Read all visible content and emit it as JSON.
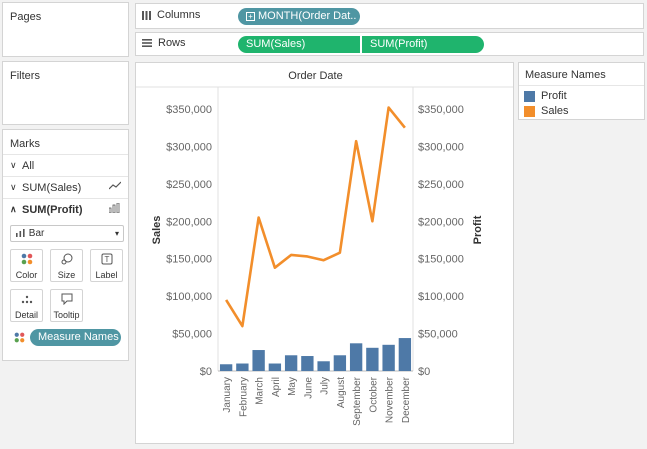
{
  "pages": {
    "title": "Pages"
  },
  "filters": {
    "title": "Filters"
  },
  "columns_shelf": {
    "label": "Columns",
    "pills": [
      "MONTH(Order Dat.."
    ]
  },
  "rows_shelf": {
    "label": "Rows",
    "pills": [
      "SUM(Sales)",
      "SUM(Profit)"
    ]
  },
  "marks": {
    "title": "Marks",
    "rows": [
      {
        "label": "All",
        "icon": "chevron-down-icon"
      },
      {
        "label": "SUM(Sales)",
        "icon": "line-mark-icon"
      },
      {
        "label": "SUM(Profit)",
        "icon": "bar-mark-icon"
      }
    ],
    "mark_type": "Bar",
    "buttons": [
      "Color",
      "Size",
      "Label",
      "Detail",
      "Tooltip"
    ],
    "color_pill": "Measure Names"
  },
  "legend": {
    "title": "Measure Names",
    "items": [
      {
        "label": "Profit",
        "color": "#4e79a7"
      },
      {
        "label": "Sales",
        "color": "#f28e2b"
      }
    ]
  },
  "chart_data": {
    "type": "bar",
    "title": "Order Date",
    "ylabel": "Sales",
    "y2label": "Profit",
    "ylim": [
      0,
      350000
    ],
    "yticks": [
      "$0",
      "$50,000",
      "$100,000",
      "$150,000",
      "$200,000",
      "$250,000",
      "$300,000",
      "$350,000"
    ],
    "categories": [
      "January",
      "February",
      "March",
      "April",
      "May",
      "June",
      "July",
      "August",
      "September",
      "October",
      "November",
      "December"
    ],
    "series": [
      {
        "name": "Sales",
        "type": "line",
        "color": "#f28e2b",
        "values": [
          95000,
          60000,
          205000,
          138000,
          155000,
          153000,
          148000,
          158000,
          307000,
          200000,
          352000,
          325000
        ]
      },
      {
        "name": "Profit",
        "type": "bar",
        "color": "#4e79a7",
        "values": [
          9000,
          10000,
          28000,
          10000,
          21000,
          20000,
          13000,
          21000,
          37000,
          31000,
          35000,
          44000
        ]
      }
    ]
  }
}
